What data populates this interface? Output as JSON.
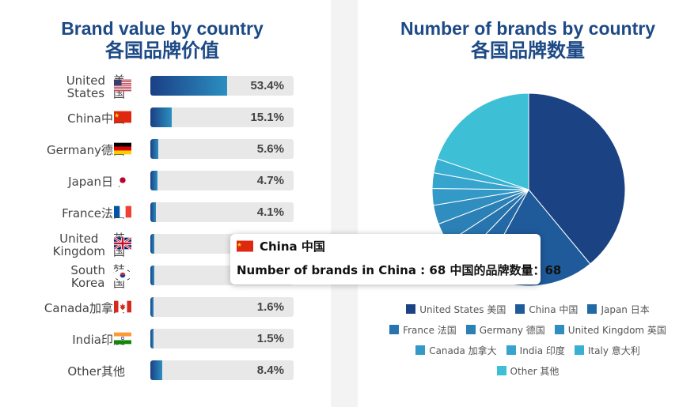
{
  "left_panel": {
    "title_en": "Brand value by country",
    "title_zh": "各国品牌价值"
  },
  "right_panel": {
    "title_en": "Number of brands by country",
    "title_zh": "各国品牌数量"
  },
  "tooltip": {
    "country": "China 中国",
    "text": "Number of brands in China : 68 中国的品牌数量：68",
    "flag_icon": "china-flag-icon"
  },
  "chart_data": [
    {
      "type": "bar",
      "orientation": "horizontal",
      "title": "Brand value by country 各国品牌价值",
      "categories": [
        "United States美国",
        "China中国",
        "Germany德国",
        "Japan日本",
        "France法国",
        "United Kingdom英国",
        "South Korea韩国",
        "Canada加拿大",
        "India印度",
        "Other其他"
      ],
      "labels": [
        "United\nStates",
        "China中国",
        "Germany德国",
        "Japan日本",
        "France法国",
        "United\nKingdom",
        "South\nKorea",
        "Canada加拿大",
        "India印度",
        "Other其他"
      ],
      "labels_zh_stacked": [
        "美\n国",
        "",
        "",
        "",
        "",
        "英\n国",
        "韩\n国",
        "",
        "",
        ""
      ],
      "values": [
        53.4,
        15.1,
        5.6,
        4.7,
        4.1,
        null,
        null,
        1.6,
        1.5,
        8.4
      ],
      "value_labels": [
        "53.4%",
        "15.1%",
        "5.6%",
        "4.7%",
        "4.1%",
        "",
        "",
        "1.6%",
        "1.5%",
        "8.4%"
      ],
      "bar_fraction_estimates": [
        0.534,
        0.151,
        0.056,
        0.047,
        0.041,
        0.03,
        0.025,
        0.016,
        0.015,
        0.084
      ],
      "flag_icons": [
        "us-flag-icon",
        "china-flag-icon",
        "germany-flag-icon",
        "japan-flag-icon",
        "france-flag-icon",
        "uk-flag-icon",
        "korea-flag-icon",
        "canada-flag-icon",
        "india-flag-icon",
        ""
      ],
      "xlim": [
        0,
        100
      ],
      "colors": {
        "start": "#1b3f85",
        "end": "#2b8fc0",
        "track": "#e8e8e8"
      }
    },
    {
      "type": "pie",
      "title": "Number of brands by country 各国品牌数量",
      "slices": [
        {
          "label": "United States 美国",
          "value": 0.39,
          "color": "#1b4384"
        },
        {
          "label": "China 中国",
          "value": 0.19,
          "color": "#1f5a9a"
        },
        {
          "label": "Japan 日本",
          "value": 0.042,
          "color": "#2369a6"
        },
        {
          "label": "France 法国",
          "value": 0.036,
          "color": "#2774ae"
        },
        {
          "label": "Germany 德国",
          "value": 0.034,
          "color": "#2b80b6"
        },
        {
          "label": "United Kingdom 英国",
          "value": 0.032,
          "color": "#2f8ebf"
        },
        {
          "label": "Canada 加拿大",
          "value": 0.028,
          "color": "#3399c6"
        },
        {
          "label": "India 印度",
          "value": 0.026,
          "color": "#36a4cc"
        },
        {
          "label": "Italy 意大利",
          "value": 0.024,
          "color": "#39b0d2"
        },
        {
          "label": "Other 其他",
          "value": 0.198,
          "color": "#3dbfd6"
        }
      ],
      "legend_rows": [
        [
          "United States 美国",
          "China 中国",
          "Japan 日本"
        ],
        [
          "France 法国",
          "Germany 德国",
          "United Kingdom 英国"
        ],
        [
          "Canada 加拿大",
          "India 印度",
          "Italy 意大利"
        ],
        [
          "Other 其他"
        ]
      ],
      "legend_placement": "bottom",
      "highlighted": "China 中国",
      "highlighted_value": 68
    }
  ]
}
